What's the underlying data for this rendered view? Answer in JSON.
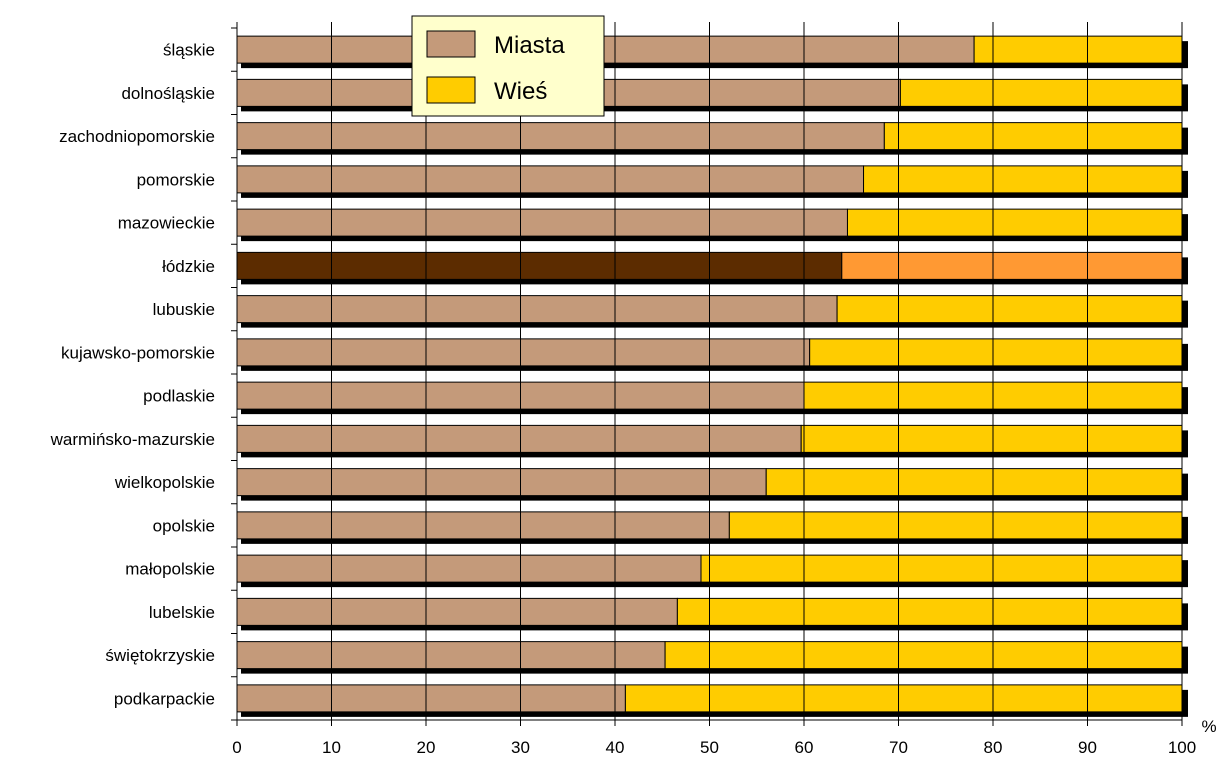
{
  "chart_data": {
    "type": "bar",
    "orientation": "horizontal",
    "stacked": true,
    "categories": [
      "śląskie",
      "dolnośląskie",
      "zachodniopomorskie",
      "pomorskie",
      "mazowieckie",
      "łódzkie",
      "lubuskie",
      "kujawsko-pomorskie",
      "podlaskie",
      "warmińsko-mazurskie",
      "wielkopolskie",
      "opolskie",
      "małopolskie",
      "lubelskie",
      "świętokrzyskie",
      "podkarpackie"
    ],
    "series": [
      {
        "name": "Miasta",
        "color": "#c49a7a",
        "values": [
          78.0,
          70.2,
          68.5,
          66.3,
          64.6,
          64.0,
          63.5,
          60.6,
          60.0,
          59.7,
          56.0,
          52.1,
          49.1,
          46.6,
          45.3,
          41.1
        ]
      },
      {
        "name": "Wieś",
        "color": "#ffcc00",
        "values": [
          22.0,
          29.8,
          31.5,
          33.7,
          35.4,
          36.0,
          36.5,
          39.4,
          40.0,
          40.3,
          44.0,
          47.9,
          50.9,
          53.4,
          54.7,
          58.9
        ]
      }
    ],
    "highlight": {
      "category": "łódzkie",
      "colors": {
        "Miasta": "#5c2c00",
        "Wieś": "#ff9933"
      }
    },
    "xlim": [
      0,
      100
    ],
    "xticks": [
      0,
      10,
      20,
      30,
      40,
      50,
      60,
      70,
      80,
      90,
      100
    ],
    "x_unit": "%",
    "grid": "vertical",
    "legend": {
      "placement": "top-center",
      "background": "#ffffcc"
    }
  }
}
